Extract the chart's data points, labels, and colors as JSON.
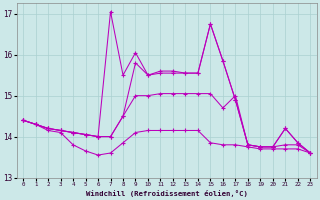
{
  "xlabel": "Windchill (Refroidissement éolien,°C)",
  "xlim": [
    -0.5,
    23.5
  ],
  "ylim": [
    13.0,
    17.25
  ],
  "yticks": [
    13,
    14,
    15,
    16,
    17
  ],
  "xticks": [
    0,
    1,
    2,
    3,
    4,
    5,
    6,
    7,
    8,
    9,
    10,
    11,
    12,
    13,
    14,
    15,
    16,
    17,
    18,
    19,
    20,
    21,
    22,
    23
  ],
  "bg_color": "#cce8e8",
  "line_color": "#bb00bb",
  "grid_color": "#aad0d0",
  "series": [
    [
      14.4,
      14.3,
      14.2,
      14.15,
      14.1,
      14.05,
      14.0,
      17.05,
      15.5,
      16.05,
      15.5,
      15.6,
      15.6,
      15.55,
      15.55,
      16.75,
      15.85,
      14.9,
      13.8,
      13.75,
      13.75,
      14.2,
      13.85,
      13.6
    ],
    [
      14.4,
      14.3,
      14.2,
      14.15,
      14.1,
      14.05,
      14.0,
      14.0,
      14.5,
      15.8,
      15.5,
      15.55,
      15.55,
      15.55,
      15.55,
      16.75,
      15.85,
      14.9,
      13.8,
      13.75,
      13.75,
      14.2,
      13.85,
      13.6
    ],
    [
      14.4,
      14.3,
      14.2,
      14.15,
      14.1,
      14.05,
      14.0,
      14.0,
      14.5,
      15.0,
      15.0,
      15.05,
      15.05,
      15.05,
      15.05,
      15.05,
      14.7,
      15.0,
      13.8,
      13.75,
      13.75,
      13.8,
      13.8,
      13.6
    ],
    [
      14.4,
      14.3,
      14.15,
      14.1,
      13.8,
      13.65,
      13.55,
      13.6,
      13.85,
      14.1,
      14.15,
      14.15,
      14.15,
      14.15,
      14.15,
      13.85,
      13.8,
      13.8,
      13.75,
      13.7,
      13.7,
      13.7,
      13.7,
      13.6
    ]
  ]
}
